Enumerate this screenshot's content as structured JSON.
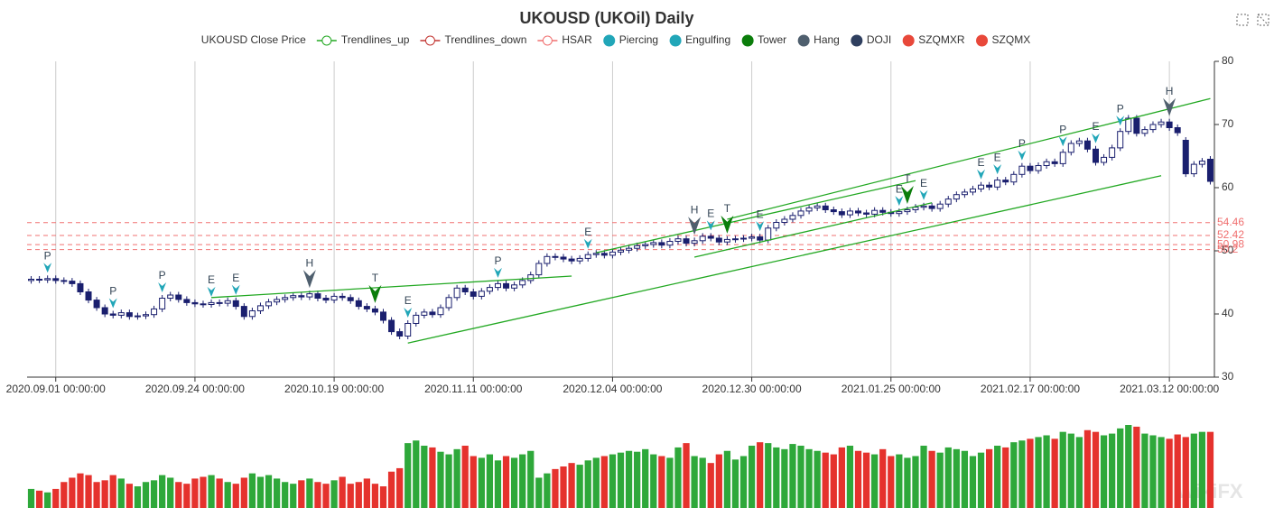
{
  "chart_data": {
    "type": "candlestick",
    "title": "UKOUSD (UKOil) Daily",
    "watermark": "WikiFX",
    "categories": [
      null,
      null,
      null,
      "2020.09.01 00:00:00",
      null,
      null,
      null,
      null,
      null,
      null,
      null,
      null,
      null,
      null,
      null,
      null,
      null,
      null,
      null,
      null,
      "2020.09.24 00:00:00",
      null,
      null,
      null,
      null,
      null,
      null,
      null,
      null,
      null,
      null,
      null,
      null,
      null,
      null,
      null,
      null,
      "2020.10.19 00:00:00",
      null,
      null,
      null,
      null,
      null,
      null,
      null,
      null,
      null,
      null,
      null,
      null,
      null,
      null,
      null,
      null,
      "2020.11.11 00:00:00",
      null,
      null,
      null,
      null,
      null,
      null,
      null,
      null,
      null,
      null,
      null,
      null,
      null,
      null,
      null,
      null,
      "2020.12.04 00:00:00",
      null,
      null,
      null,
      null,
      null,
      null,
      null,
      null,
      null,
      null,
      null,
      null,
      null,
      null,
      null,
      null,
      "2020.12.30 00:00:00",
      null,
      null,
      null,
      null,
      null,
      null,
      null,
      null,
      null,
      null,
      null,
      null,
      null,
      null,
      null,
      null,
      "2021.01.25 00:00:00",
      null,
      null,
      null,
      null,
      null,
      null,
      null,
      null,
      null,
      null,
      null,
      null,
      null,
      null,
      null,
      null,
      "2021.02.17 00:00:00",
      null,
      null,
      null,
      null,
      null,
      null,
      null,
      null,
      null,
      null,
      null,
      null,
      null,
      null,
      null,
      null,
      "2021.03.12 00:00:00",
      null,
      null,
      null,
      null,
      null
    ],
    "open": [
      45.3,
      45.5,
      45.4,
      45.6,
      45.3,
      45.2,
      44.8,
      43.5,
      42.2,
      41.0,
      40.0,
      39.8,
      40.2,
      39.6,
      39.7,
      39.9,
      40.8,
      42.5,
      43.0,
      42.3,
      41.8,
      41.6,
      41.5,
      41.8,
      41.7,
      42.1,
      41.2,
      39.6,
      40.5,
      41.3,
      41.9,
      42.3,
      42.6,
      42.9,
      42.7,
      43.2,
      42.5,
      42.2,
      42.8,
      42.6,
      42.1,
      41.2,
      40.8,
      40.3,
      39.0,
      37.2,
      36.5,
      38.5,
      39.8,
      40.3,
      39.9,
      41.0,
      42.6,
      44.1,
      43.5,
      42.8,
      43.6,
      44.2,
      44.8,
      44.1,
      44.6,
      45.3,
      46.2,
      48.0,
      49.1,
      49.0,
      48.7,
      48.4,
      48.8,
      49.4,
      49.6,
      49.3,
      49.8,
      50.1,
      50.4,
      50.8,
      51.0,
      51.3,
      50.9,
      51.5,
      51.9,
      51.2,
      51.6,
      52.3,
      52.0,
      51.4,
      51.8,
      51.9,
      52.0,
      52.2,
      51.7,
      53.6,
      54.5,
      55.0,
      55.6,
      56.3,
      56.8,
      57.1,
      56.5,
      56.2,
      55.7,
      56.3,
      56.0,
      55.8,
      56.4,
      56.1,
      55.9,
      56.2,
      56.5,
      56.9,
      57.1,
      56.7,
      57.4,
      58.2,
      58.9,
      59.3,
      59.8,
      60.4,
      60.1,
      61.2,
      60.9,
      62.1,
      63.4,
      62.7,
      63.5,
      64.1,
      63.8,
      65.6,
      67.0,
      67.4,
      66.1,
      64.0,
      64.8,
      66.3,
      68.9,
      71.0,
      68.6,
      69.2,
      70.0,
      70.4,
      69.5,
      67.5,
      62.2,
      63.7,
      64.5
    ],
    "high": [
      46.0,
      46.0,
      46.1,
      46.1,
      45.8,
      45.7,
      45.3,
      44.0,
      42.7,
      41.5,
      40.5,
      40.7,
      40.7,
      40.2,
      40.4,
      41.3,
      43.0,
      43.5,
      43.5,
      42.8,
      42.3,
      42.1,
      42.3,
      42.3,
      42.6,
      42.6,
      41.7,
      41.0,
      41.8,
      42.4,
      42.8,
      43.1,
      43.4,
      43.4,
      43.7,
      43.7,
      43.0,
      43.3,
      43.3,
      43.1,
      42.6,
      41.7,
      41.3,
      40.8,
      39.5,
      37.7,
      39.0,
      40.3,
      40.8,
      40.8,
      41.5,
      43.1,
      44.6,
      44.6,
      44.0,
      44.1,
      44.7,
      45.3,
      45.3,
      45.1,
      45.8,
      46.7,
      48.5,
      49.6,
      49.6,
      49.5,
      49.2,
      49.3,
      49.9,
      50.1,
      50.1,
      50.3,
      50.6,
      50.9,
      51.3,
      51.5,
      51.8,
      51.8,
      52.0,
      52.4,
      52.4,
      52.1,
      52.8,
      52.8,
      52.5,
      52.3,
      52.4,
      52.5,
      52.7,
      52.7,
      54.1,
      55.0,
      55.5,
      56.1,
      56.8,
      57.3,
      57.6,
      57.6,
      57.0,
      56.7,
      56.8,
      56.8,
      56.5,
      56.9,
      56.9,
      56.6,
      56.7,
      57.0,
      57.4,
      57.6,
      57.6,
      57.9,
      58.7,
      59.4,
      59.8,
      60.3,
      60.9,
      60.9,
      61.7,
      61.7,
      62.6,
      63.9,
      63.9,
      64.0,
      64.6,
      64.6,
      66.1,
      67.5,
      67.9,
      67.9,
      66.6,
      65.3,
      66.8,
      69.4,
      71.5,
      71.5,
      69.7,
      70.5,
      70.9,
      70.9,
      70.0,
      68.0,
      64.2,
      64.7,
      65.0
    ],
    "low": [
      44.8,
      44.9,
      44.9,
      44.8,
      44.7,
      44.3,
      43.0,
      41.7,
      40.5,
      39.5,
      39.3,
      39.3,
      39.1,
      39.1,
      39.2,
      39.4,
      40.3,
      42.0,
      41.8,
      41.3,
      41.1,
      41.0,
      41.0,
      41.2,
      41.2,
      40.7,
      39.1,
      39.1,
      40.0,
      40.8,
      41.4,
      41.8,
      42.1,
      42.2,
      42.2,
      42.0,
      41.7,
      41.7,
      42.1,
      41.6,
      40.7,
      40.3,
      39.8,
      38.5,
      36.7,
      36.0,
      36.0,
      38.0,
      39.3,
      39.4,
      39.4,
      40.5,
      42.1,
      43.0,
      42.3,
      42.3,
      43.1,
      43.7,
      43.6,
      43.6,
      44.1,
      44.8,
      45.7,
      47.5,
      48.5,
      48.2,
      47.9,
      47.9,
      48.3,
      48.9,
      48.8,
      48.8,
      49.3,
      49.6,
      49.9,
      50.3,
      50.5,
      50.4,
      50.4,
      51.0,
      50.7,
      50.7,
      51.1,
      51.5,
      50.9,
      50.9,
      51.3,
      51.4,
      51.5,
      51.2,
      51.2,
      53.1,
      54.0,
      54.5,
      55.1,
      55.8,
      56.3,
      56.0,
      55.7,
      55.2,
      55.2,
      55.5,
      55.3,
      55.3,
      55.6,
      55.4,
      55.4,
      55.7,
      56.0,
      56.4,
      56.2,
      56.2,
      56.9,
      57.7,
      58.4,
      58.8,
      59.3,
      59.6,
      59.6,
      60.4,
      60.4,
      61.6,
      62.2,
      62.2,
      63.0,
      63.3,
      63.3,
      65.1,
      66.5,
      65.6,
      63.5,
      63.5,
      64.3,
      65.8,
      68.4,
      68.1,
      68.1,
      68.7,
      69.5,
      69.0,
      68.2,
      61.7,
      61.7,
      63.2,
      60.5
    ],
    "close": [
      45.5,
      45.4,
      45.6,
      45.3,
      45.2,
      44.8,
      43.5,
      42.2,
      41.0,
      40.0,
      39.8,
      40.2,
      39.6,
      39.7,
      39.9,
      40.8,
      42.5,
      43.0,
      42.3,
      41.8,
      41.6,
      41.5,
      41.8,
      41.7,
      42.1,
      41.2,
      39.6,
      40.5,
      41.3,
      41.9,
      42.3,
      42.6,
      42.9,
      42.7,
      43.2,
      42.5,
      42.2,
      42.8,
      42.6,
      42.1,
      41.2,
      40.8,
      40.3,
      39.0,
      37.2,
      36.5,
      38.5,
      39.8,
      40.3,
      39.9,
      41.0,
      42.6,
      44.1,
      43.5,
      42.8,
      43.6,
      44.2,
      44.8,
      44.1,
      44.6,
      45.3,
      46.2,
      48.0,
      49.1,
      49.0,
      48.7,
      48.4,
      48.8,
      49.4,
      49.6,
      49.3,
      49.8,
      50.1,
      50.4,
      50.8,
      51.0,
      51.3,
      50.9,
      51.5,
      51.9,
      51.2,
      51.6,
      52.3,
      52.0,
      51.4,
      51.8,
      51.9,
      52.0,
      52.2,
      51.7,
      53.6,
      54.5,
      55.0,
      55.6,
      56.3,
      56.8,
      57.1,
      56.5,
      56.2,
      55.7,
      56.3,
      56.0,
      55.8,
      56.4,
      56.1,
      55.9,
      56.2,
      56.5,
      56.9,
      57.1,
      56.7,
      57.4,
      58.2,
      58.9,
      59.3,
      59.8,
      60.4,
      60.1,
      61.2,
      60.9,
      62.1,
      63.4,
      62.7,
      63.5,
      64.1,
      63.8,
      65.6,
      67.0,
      67.4,
      66.1,
      64.0,
      64.8,
      66.3,
      68.9,
      71.0,
      68.6,
      69.2,
      70.0,
      70.4,
      69.5,
      68.7,
      62.2,
      63.7,
      64.2,
      61.0
    ],
    "volume": [
      22,
      20,
      18,
      22,
      30,
      35,
      40,
      38,
      30,
      32,
      38,
      34,
      28,
      25,
      30,
      32,
      38,
      35,
      30,
      28,
      34,
      36,
      38,
      34,
      30,
      28,
      35,
      40,
      36,
      38,
      34,
      30,
      28,
      32,
      34,
      30,
      28,
      32,
      36,
      28,
      30,
      34,
      28,
      25,
      42,
      46,
      75,
      78,
      72,
      70,
      65,
      62,
      68,
      72,
      60,
      58,
      62,
      55,
      60,
      58,
      62,
      66,
      35,
      40,
      45,
      48,
      52,
      50,
      55,
      58,
      60,
      62,
      64,
      66,
      65,
      68,
      62,
      60,
      58,
      70,
      75,
      60,
      58,
      52,
      62,
      66,
      56,
      60,
      72,
      76,
      75,
      70,
      68,
      74,
      72,
      68,
      66,
      64,
      62,
      70,
      72,
      66,
      64,
      62,
      68,
      60,
      62,
      58,
      60,
      72,
      66,
      64,
      70,
      68,
      66,
      60,
      64,
      68,
      72,
      70,
      76,
      78,
      80,
      82,
      84,
      80,
      88,
      86,
      82,
      90,
      88,
      84,
      86,
      92,
      96,
      94,
      86,
      84,
      82,
      80,
      85,
      82,
      86,
      88,
      88
    ],
    "up_color": "#1a1f6e",
    "down_color": "#1a1f6e",
    "volume_up_color": "#2ea83a",
    "volume_down_color": "#e5322d",
    "ylim": [
      30,
      80
    ],
    "yticks": [
      30,
      40,
      50,
      60,
      70,
      80
    ],
    "grid": "x",
    "series": [
      {
        "name": "UKOUSD Close Price"
      },
      {
        "name": "Trendlines_up",
        "color": "#22a822",
        "lines": [
          [
            [
              22,
              42.6
            ],
            [
              66,
              46.0
            ]
          ],
          [
            [
              46,
              35.4
            ],
            [
              138,
              61.9
            ]
          ],
          [
            [
              69,
              49.7
            ],
            [
              108,
              61.1
            ]
          ],
          [
            [
              81,
              49.0
            ],
            [
              110,
              57.6
            ]
          ],
          [
            [
              85,
              55.0
            ],
            [
              144,
              74.1
            ]
          ]
        ]
      },
      {
        "name": "Trendlines_down",
        "color": "#c23531",
        "lines": []
      },
      {
        "name": "HSAR",
        "color": "#f07070",
        "levels": [
          54.46,
          52.42,
          50.98,
          50.2
        ]
      },
      {
        "name": "Piercing",
        "color": "#21a6b8"
      },
      {
        "name": "Engulfing",
        "color": "#21a6b8"
      },
      {
        "name": "Tower",
        "color": "#0b7d0b"
      },
      {
        "name": "Hang",
        "color": "#4f5f6e"
      },
      {
        "name": "DOJI",
        "color": "#2f3f5f"
      },
      {
        "name": "SZQMXR",
        "color": "#e8483a"
      },
      {
        "name": "SZQMX",
        "color": "#e8483a"
      }
    ],
    "signals": [
      {
        "index": 2,
        "label": "P",
        "series": "Piercing"
      },
      {
        "index": 10,
        "label": "P",
        "series": "Piercing"
      },
      {
        "index": 16,
        "label": "P",
        "series": "Piercing"
      },
      {
        "index": 22,
        "label": "E",
        "series": "Engulfing"
      },
      {
        "index": 25,
        "label": "E",
        "series": "Engulfing"
      },
      {
        "index": 34,
        "label": "H",
        "series": "Hang"
      },
      {
        "index": 42,
        "label": "T",
        "series": "Tower"
      },
      {
        "index": 46,
        "label": "E",
        "series": "Engulfing"
      },
      {
        "index": 57,
        "label": "P",
        "series": "Piercing"
      },
      {
        "index": 68,
        "label": "E",
        "series": "Engulfing"
      },
      {
        "index": 81,
        "label": "H",
        "series": "Hang"
      },
      {
        "index": 83,
        "label": "E",
        "series": "Engulfing"
      },
      {
        "index": 85,
        "label": "T",
        "series": "Tower"
      },
      {
        "index": 89,
        "label": "E",
        "series": "Engulfing"
      },
      {
        "index": 106,
        "label": "E",
        "series": "Engulfing"
      },
      {
        "index": 107,
        "label": "T",
        "series": "Tower"
      },
      {
        "index": 109,
        "label": "E",
        "series": "Engulfing"
      },
      {
        "index": 116,
        "label": "E",
        "series": "Engulfing"
      },
      {
        "index": 118,
        "label": "E",
        "series": "Engulfing"
      },
      {
        "index": 121,
        "label": "P",
        "series": "Piercing"
      },
      {
        "index": 126,
        "label": "P",
        "series": "Piercing"
      },
      {
        "index": 130,
        "label": "E",
        "series": "Engulfing"
      },
      {
        "index": 133,
        "label": "P",
        "series": "Piercing"
      },
      {
        "index": 139,
        "label": "H",
        "series": "Hang"
      }
    ]
  }
}
